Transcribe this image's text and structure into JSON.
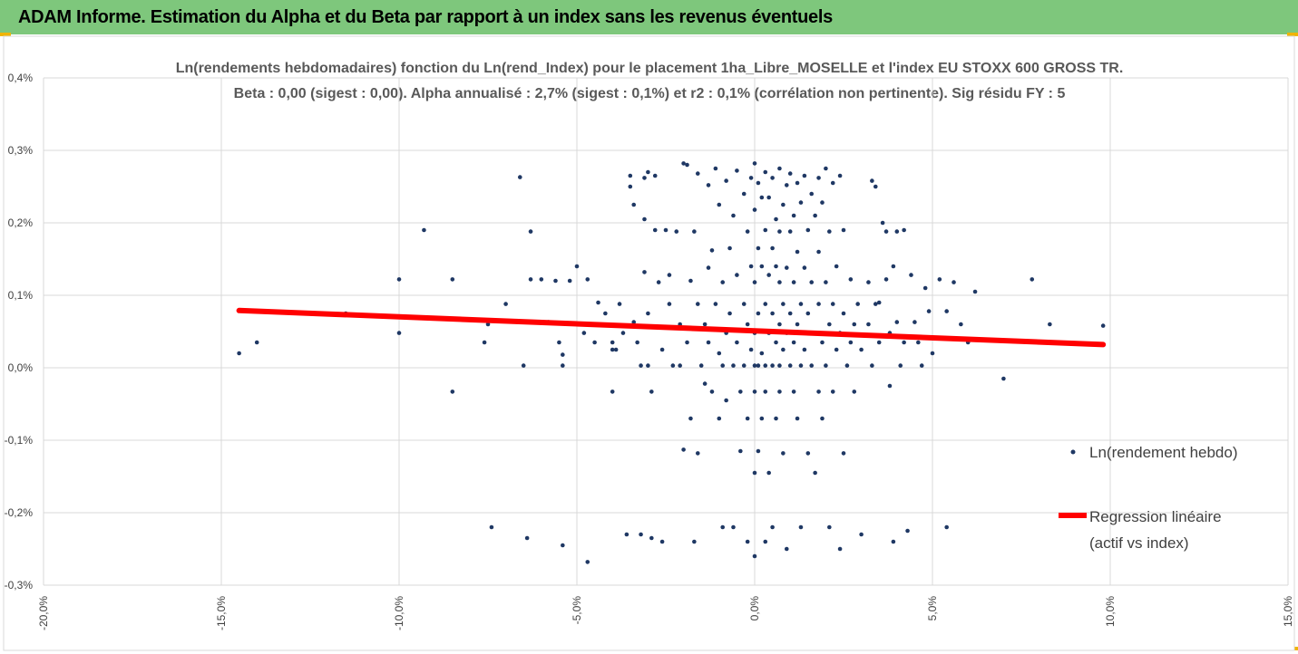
{
  "header": {
    "title": "ADAM Informe. Estimation du Alpha et du Beta par rapport à un index sans les revenus éventuels"
  },
  "colors": {
    "header_bg": "#7ec77c",
    "corner_accent": "#f0b400",
    "points": "#1f3864",
    "regression": "#ff0000",
    "grid": "#d9d9d9"
  },
  "chart_data": {
    "type": "scatter",
    "title": "Ln(rendements hebdomadaires) fonction du Ln(rend_Index) pour le placement 1ha_Libre_MOSELLE et l'index EU STOXX 600 GROSS TR.",
    "subtitle": "Beta : 0,00 (sigest : 0,00). Alpha annualisé : 2,7% (sigest : 0,1%) et r2 : 0,1% (corrélation non pertinente). Sig résidu FY : 5",
    "xlim": [
      -0.2,
      0.15
    ],
    "ylim": [
      -0.003,
      0.004
    ],
    "x_tick_labels": [
      "-20,0%",
      "-15,0%",
      "-10,0%",
      "-5,0%",
      "0,0%",
      "5,0%",
      "10,0%",
      "15,0%"
    ],
    "x_ticks": [
      -0.2,
      -0.15,
      -0.1,
      -0.05,
      0,
      0.05,
      0.1,
      0.15
    ],
    "y_tick_labels": [
      "-0,3%",
      "-0,2%",
      "-0,1%",
      "0,0%",
      "0,1%",
      "0,2%",
      "0,3%",
      "0,4%"
    ],
    "y_ticks": [
      -0.003,
      -0.002,
      -0.001,
      0,
      0.001,
      0.002,
      0.003,
      0.004
    ],
    "grid": true,
    "legend_position": "right",
    "series": [
      {
        "name": "Ln(rendement hebdo)",
        "kind": "scatter",
        "points": [
          [
            -0.145,
            0.0002
          ],
          [
            -0.14,
            0.00035
          ],
          [
            -0.115,
            0.00075
          ],
          [
            -0.1,
            0.00122
          ],
          [
            -0.1,
            0.00048
          ],
          [
            -0.093,
            0.0019
          ],
          [
            -0.085,
            0.00122
          ],
          [
            -0.085,
            -0.00033
          ],
          [
            -0.076,
            0.00035
          ],
          [
            -0.075,
            0.0006
          ],
          [
            -0.074,
            -0.0022
          ],
          [
            -0.07,
            0.00088
          ],
          [
            -0.066,
            0.00263
          ],
          [
            -0.065,
            3e-05
          ],
          [
            -0.064,
            -0.00235
          ],
          [
            -0.063,
            0.00188
          ],
          [
            -0.063,
            0.00122
          ],
          [
            -0.06,
            0.00122
          ],
          [
            -0.058,
            0.00063
          ],
          [
            -0.056,
            0.0012
          ],
          [
            -0.055,
            0.00035
          ],
          [
            -0.054,
            0.00018
          ],
          [
            -0.054,
            3e-05
          ],
          [
            -0.054,
            -0.00245
          ],
          [
            -0.052,
            0.0012
          ],
          [
            -0.05,
            0.0014
          ],
          [
            -0.048,
            0.00048
          ],
          [
            -0.047,
            0.00122
          ],
          [
            -0.047,
            -0.00268
          ],
          [
            -0.045,
            0.00035
          ],
          [
            -0.044,
            0.0009
          ],
          [
            -0.042,
            0.00075
          ],
          [
            -0.04,
            0.00035
          ],
          [
            -0.04,
            0.00025
          ],
          [
            -0.04,
            -0.00033
          ],
          [
            -0.039,
            0.00025
          ],
          [
            -0.038,
            0.00088
          ],
          [
            -0.037,
            0.00048
          ],
          [
            -0.036,
            -0.0023
          ],
          [
            -0.035,
            0.00265
          ],
          [
            -0.035,
            0.0025
          ],
          [
            -0.034,
            0.00225
          ],
          [
            -0.034,
            0.00063
          ],
          [
            -0.033,
            0.00035
          ],
          [
            -0.032,
            3e-05
          ],
          [
            -0.032,
            -0.0023
          ],
          [
            -0.031,
            0.00262
          ],
          [
            -0.031,
            0.00205
          ],
          [
            -0.031,
            0.00132
          ],
          [
            -0.03,
            0.0027
          ],
          [
            -0.03,
            0.00075
          ],
          [
            -0.03,
            3e-05
          ],
          [
            -0.029,
            -0.00033
          ],
          [
            -0.029,
            -0.00235
          ],
          [
            -0.028,
            0.00265
          ],
          [
            -0.028,
            0.0019
          ],
          [
            -0.027,
            0.00118
          ],
          [
            -0.026,
            0.00025
          ],
          [
            -0.026,
            -0.0024
          ],
          [
            -0.025,
            0.0019
          ],
          [
            -0.024,
            0.00128
          ],
          [
            -0.024,
            0.00088
          ],
          [
            -0.023,
            3e-05
          ],
          [
            -0.022,
            0.00188
          ],
          [
            -0.021,
            0.0006
          ],
          [
            -0.021,
            3e-05
          ],
          [
            -0.02,
            0.00282
          ],
          [
            -0.02,
            -0.00113
          ],
          [
            -0.019,
            0.0028
          ],
          [
            -0.019,
            0.00035
          ],
          [
            -0.018,
            0.0012
          ],
          [
            -0.018,
            -0.0007
          ],
          [
            -0.017,
            0.00188
          ],
          [
            -0.017,
            -0.0024
          ],
          [
            -0.016,
            0.00268
          ],
          [
            -0.016,
            0.00088
          ],
          [
            -0.016,
            -0.00118
          ],
          [
            -0.015,
            3e-05
          ],
          [
            -0.014,
            0.0006
          ],
          [
            -0.014,
            -0.00022
          ],
          [
            -0.013,
            0.00252
          ],
          [
            -0.013,
            0.00138
          ],
          [
            -0.013,
            0.00035
          ],
          [
            -0.012,
            0.00162
          ],
          [
            -0.012,
            -0.00033
          ],
          [
            -0.011,
            0.00275
          ],
          [
            -0.011,
            0.00088
          ],
          [
            -0.01,
            0.00225
          ],
          [
            -0.01,
            0.0002
          ],
          [
            -0.01,
            -0.0007
          ],
          [
            -0.009,
            0.00118
          ],
          [
            -0.009,
            3e-05
          ],
          [
            -0.009,
            -0.0022
          ],
          [
            -0.008,
            0.00258
          ],
          [
            -0.008,
            0.00048
          ],
          [
            -0.008,
            -0.00045
          ],
          [
            -0.007,
            0.00165
          ],
          [
            -0.007,
            0.00075
          ],
          [
            -0.006,
            0.0021
          ],
          [
            -0.006,
            3e-05
          ],
          [
            -0.006,
            -0.0022
          ],
          [
            -0.005,
            0.00272
          ],
          [
            -0.005,
            0.00128
          ],
          [
            -0.005,
            0.00035
          ],
          [
            -0.004,
            -0.00033
          ],
          [
            -0.004,
            -0.00115
          ],
          [
            -0.003,
            0.0024
          ],
          [
            -0.003,
            0.00088
          ],
          [
            -0.003,
            3e-05
          ],
          [
            -0.002,
            0.00188
          ],
          [
            -0.002,
            0.0006
          ],
          [
            -0.002,
            -0.0007
          ],
          [
            -0.002,
            -0.0024
          ],
          [
            -0.001,
            0.00262
          ],
          [
            -0.001,
            0.0014
          ],
          [
            -0.001,
            0.00025
          ],
          [
            0.0,
            0.00282
          ],
          [
            0.0,
            0.00218
          ],
          [
            0.0,
            0.00118
          ],
          [
            0.0,
            0.00048
          ],
          [
            0.0,
            3e-05
          ],
          [
            0.0,
            -0.00033
          ],
          [
            0.0,
            -0.00145
          ],
          [
            0.0,
            -0.0026
          ],
          [
            0.001,
            0.00255
          ],
          [
            0.001,
            0.00165
          ],
          [
            0.001,
            0.00075
          ],
          [
            0.001,
            3e-05
          ],
          [
            0.001,
            -0.00115
          ],
          [
            0.002,
            0.00235
          ],
          [
            0.002,
            0.0014
          ],
          [
            0.002,
            0.0002
          ],
          [
            0.002,
            -0.0007
          ],
          [
            0.003,
            0.0027
          ],
          [
            0.003,
            0.0019
          ],
          [
            0.003,
            0.00088
          ],
          [
            0.003,
            3e-05
          ],
          [
            0.003,
            -0.00033
          ],
          [
            0.003,
            -0.0024
          ],
          [
            0.004,
            0.00235
          ],
          [
            0.004,
            0.00128
          ],
          [
            0.004,
            0.00048
          ],
          [
            0.004,
            -0.00145
          ],
          [
            0.005,
            0.00262
          ],
          [
            0.005,
            0.00165
          ],
          [
            0.005,
            0.00075
          ],
          [
            0.005,
            3e-05
          ],
          [
            0.005,
            -0.0022
          ],
          [
            0.006,
            0.00205
          ],
          [
            0.006,
            0.0014
          ],
          [
            0.006,
            0.00035
          ],
          [
            0.006,
            -0.0007
          ],
          [
            0.007,
            0.00275
          ],
          [
            0.007,
            0.00188
          ],
          [
            0.007,
            0.00118
          ],
          [
            0.007,
            0.0006
          ],
          [
            0.007,
            3e-05
          ],
          [
            0.007,
            -0.00033
          ],
          [
            0.008,
            0.00225
          ],
          [
            0.008,
            0.00088
          ],
          [
            0.008,
            0.00025
          ],
          [
            0.008,
            -0.00118
          ],
          [
            0.009,
            0.00252
          ],
          [
            0.009,
            0.00138
          ],
          [
            0.009,
            0.00048
          ],
          [
            0.009,
            -0.0025
          ],
          [
            0.01,
            0.00268
          ],
          [
            0.01,
            0.00188
          ],
          [
            0.01,
            0.00075
          ],
          [
            0.01,
            3e-05
          ],
          [
            0.011,
            0.0021
          ],
          [
            0.011,
            0.00118
          ],
          [
            0.011,
            0.00035
          ],
          [
            0.011,
            -0.00033
          ],
          [
            0.012,
            0.00255
          ],
          [
            0.012,
            0.0016
          ],
          [
            0.012,
            0.0006
          ],
          [
            0.012,
            -0.0007
          ],
          [
            0.013,
            0.00228
          ],
          [
            0.013,
            0.00088
          ],
          [
            0.013,
            3e-05
          ],
          [
            0.013,
            -0.0022
          ],
          [
            0.014,
            0.00265
          ],
          [
            0.014,
            0.00138
          ],
          [
            0.014,
            0.00025
          ],
          [
            0.015,
            0.0019
          ],
          [
            0.015,
            0.00075
          ],
          [
            0.015,
            -0.00118
          ],
          [
            0.016,
            0.0024
          ],
          [
            0.016,
            0.00118
          ],
          [
            0.016,
            3e-05
          ],
          [
            0.017,
            0.0021
          ],
          [
            0.017,
            0.00048
          ],
          [
            0.017,
            -0.00145
          ],
          [
            0.018,
            0.00262
          ],
          [
            0.018,
            0.0016
          ],
          [
            0.018,
            0.00088
          ],
          [
            0.018,
            -0.00033
          ],
          [
            0.019,
            0.00228
          ],
          [
            0.019,
            0.00035
          ],
          [
            0.019,
            -0.0007
          ],
          [
            0.02,
            0.00275
          ],
          [
            0.02,
            0.00118
          ],
          [
            0.02,
            3e-05
          ],
          [
            0.021,
            0.00188
          ],
          [
            0.021,
            0.0006
          ],
          [
            0.021,
            -0.0022
          ],
          [
            0.022,
            0.00255
          ],
          [
            0.022,
            0.00088
          ],
          [
            0.022,
            -0.00033
          ],
          [
            0.023,
            0.0014
          ],
          [
            0.023,
            0.00025
          ],
          [
            0.024,
            0.00265
          ],
          [
            0.024,
            0.00048
          ],
          [
            0.024,
            -0.0025
          ],
          [
            0.025,
            0.0019
          ],
          [
            0.025,
            0.00075
          ],
          [
            0.025,
            -0.00118
          ],
          [
            0.026,
            3e-05
          ],
          [
            0.027,
            0.00122
          ],
          [
            0.027,
            0.00035
          ],
          [
            0.028,
            0.0006
          ],
          [
            0.028,
            -0.00033
          ],
          [
            0.029,
            0.00088
          ],
          [
            0.03,
            0.00025
          ],
          [
            0.03,
            -0.0023
          ],
          [
            0.032,
            0.00118
          ],
          [
            0.032,
            0.0006
          ],
          [
            0.033,
            0.00258
          ],
          [
            0.033,
            3e-05
          ],
          [
            0.034,
            0.0025
          ],
          [
            0.034,
            0.00088
          ],
          [
            0.035,
            0.0009
          ],
          [
            0.035,
            0.00035
          ],
          [
            0.036,
            0.002
          ],
          [
            0.037,
            0.00188
          ],
          [
            0.037,
            0.00122
          ],
          [
            0.038,
            0.00048
          ],
          [
            0.038,
            -0.00025
          ],
          [
            0.039,
            0.0014
          ],
          [
            0.039,
            -0.0024
          ],
          [
            0.04,
            0.00188
          ],
          [
            0.04,
            0.00063
          ],
          [
            0.041,
            3e-05
          ],
          [
            0.042,
            0.0019
          ],
          [
            0.042,
            0.00035
          ],
          [
            0.043,
            -0.00225
          ],
          [
            0.044,
            0.00128
          ],
          [
            0.045,
            0.00063
          ],
          [
            0.046,
            0.00035
          ],
          [
            0.047,
            3e-05
          ],
          [
            0.048,
            0.0011
          ],
          [
            0.049,
            0.00078
          ],
          [
            0.05,
            0.0002
          ],
          [
            0.052,
            0.00122
          ],
          [
            0.054,
            0.00078
          ],
          [
            0.054,
            -0.0022
          ],
          [
            0.056,
            0.00118
          ],
          [
            0.058,
            0.0006
          ],
          [
            0.06,
            0.00035
          ],
          [
            0.062,
            0.00105
          ],
          [
            0.07,
            -0.00015
          ],
          [
            0.078,
            0.00122
          ],
          [
            0.083,
            0.0006
          ],
          [
            0.098,
            0.00058
          ]
        ]
      },
      {
        "name": "Regression linéaire",
        "name_line2": "(actif vs index)",
        "kind": "line",
        "points": [
          [
            -0.145,
            0.00079
          ],
          [
            0.098,
            0.00032
          ]
        ]
      }
    ]
  }
}
